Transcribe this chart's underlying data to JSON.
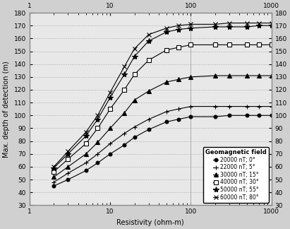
{
  "xlabel": "Resistivity (ohm-m)",
  "ylabel": "Max. depth of detection (m)",
  "xlim": [
    1,
    1000
  ],
  "ylim": [
    30,
    180
  ],
  "yticks": [
    30,
    40,
    50,
    60,
    70,
    80,
    90,
    100,
    110,
    120,
    130,
    140,
    150,
    160,
    170,
    180
  ],
  "series": [
    {
      "label": "20000 nT; 0°",
      "marker": "o",
      "ms": 3.5,
      "mfc": "black",
      "x": [
        2,
        3,
        5,
        7,
        10,
        15,
        20,
        30,
        50,
        70,
        100,
        200,
        300,
        500,
        700,
        1000
      ],
      "y": [
        45,
        50,
        57,
        63,
        70,
        77,
        83,
        89,
        95,
        97,
        99,
        99,
        100,
        100,
        100,
        100
      ]
    },
    {
      "label": "22000 nT; 5°",
      "marker": "+",
      "ms": 5,
      "mfc": "black",
      "x": [
        2,
        3,
        5,
        7,
        10,
        15,
        20,
        30,
        50,
        70,
        100,
        200,
        300,
        500,
        700,
        1000
      ],
      "y": [
        48,
        55,
        63,
        70,
        78,
        86,
        91,
        97,
        103,
        105,
        107,
        107,
        107,
        107,
        107,
        107
      ]
    },
    {
      "label": "30000 nT; 15°",
      "marker": "^",
      "ms": 4,
      "mfc": "black",
      "x": [
        2,
        3,
        5,
        7,
        10,
        15,
        20,
        30,
        50,
        70,
        100,
        200,
        300,
        500,
        700,
        1000
      ],
      "y": [
        52,
        60,
        70,
        79,
        90,
        102,
        112,
        119,
        126,
        128,
        130,
        131,
        131,
        131,
        131,
        131
      ]
    },
    {
      "label": "40000 nT; 30°",
      "marker": "s",
      "ms": 4,
      "mfc": "white",
      "x": [
        2,
        3,
        5,
        7,
        10,
        15,
        20,
        30,
        50,
        70,
        100,
        200,
        300,
        500,
        700,
        1000
      ],
      "y": [
        56,
        66,
        78,
        90,
        105,
        120,
        132,
        143,
        151,
        153,
        155,
        155,
        155,
        155,
        155,
        155
      ]
    },
    {
      "label": "50000 nT; 55°",
      "marker": "*",
      "ms": 6,
      "mfc": "black",
      "x": [
        2,
        3,
        5,
        7,
        10,
        15,
        20,
        30,
        50,
        70,
        100,
        200,
        300,
        500,
        700,
        1000
      ],
      "y": [
        59,
        70,
        84,
        97,
        114,
        132,
        146,
        158,
        165,
        167,
        168,
        169,
        169,
        169,
        170,
        170
      ]
    },
    {
      "label": "60000 nT; 80°",
      "marker": "x",
      "ms": 5,
      "mfc": "black",
      "x": [
        2,
        3,
        5,
        7,
        10,
        15,
        20,
        30,
        50,
        70,
        100,
        200,
        300,
        500,
        700,
        1000
      ],
      "y": [
        60,
        72,
        87,
        100,
        118,
        138,
        152,
        163,
        168,
        170,
        171,
        171,
        172,
        172,
        172,
        172
      ]
    }
  ],
  "legend_title": "Geomagnetic field",
  "vlines": [
    100,
    1000
  ],
  "plot_bgcolor": "#e8e8e8",
  "fig_bgcolor": "#d0d0d0",
  "border_color": "#888888"
}
